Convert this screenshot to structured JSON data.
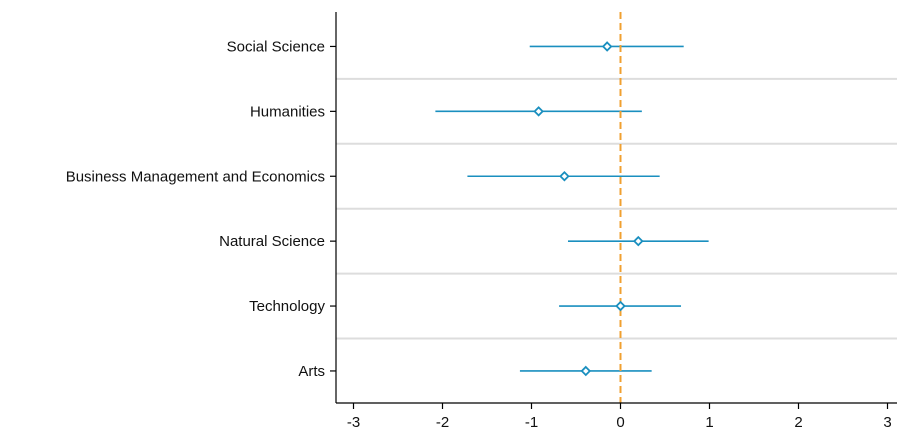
{
  "chart_data": {
    "type": "scatter",
    "subtype": "coefficient-plot",
    "title": "",
    "xlabel": "",
    "ylabel": "",
    "xlim": [
      -3.1,
      3.1
    ],
    "xticks": [
      -3,
      -2,
      -1,
      0,
      1,
      2,
      3
    ],
    "reference_line": {
      "x": 0,
      "style": "dashed",
      "color": "#f0a030"
    },
    "grid": {
      "horizontal_separators": true,
      "vertical": false
    },
    "legend": "none",
    "colors": {
      "point": "#1a8fbf",
      "ci": "#1a8fbf",
      "separator": "#dddddd",
      "axis": "#000000"
    },
    "categories": [
      "Social Science",
      "Humanities",
      "Business Management and Economics",
      "Natural Science",
      "Technology",
      "Arts"
    ],
    "series": [
      {
        "marker": "hollow-diamond",
        "estimates": [
          -0.15,
          -0.92,
          -0.63,
          0.2,
          0.0,
          -0.39
        ],
        "ci_low": [
          -1.02,
          -2.08,
          -1.72,
          -0.59,
          -0.69,
          -1.13
        ],
        "ci_high": [
          0.71,
          0.24,
          0.44,
          0.99,
          0.68,
          0.35
        ]
      }
    ]
  }
}
